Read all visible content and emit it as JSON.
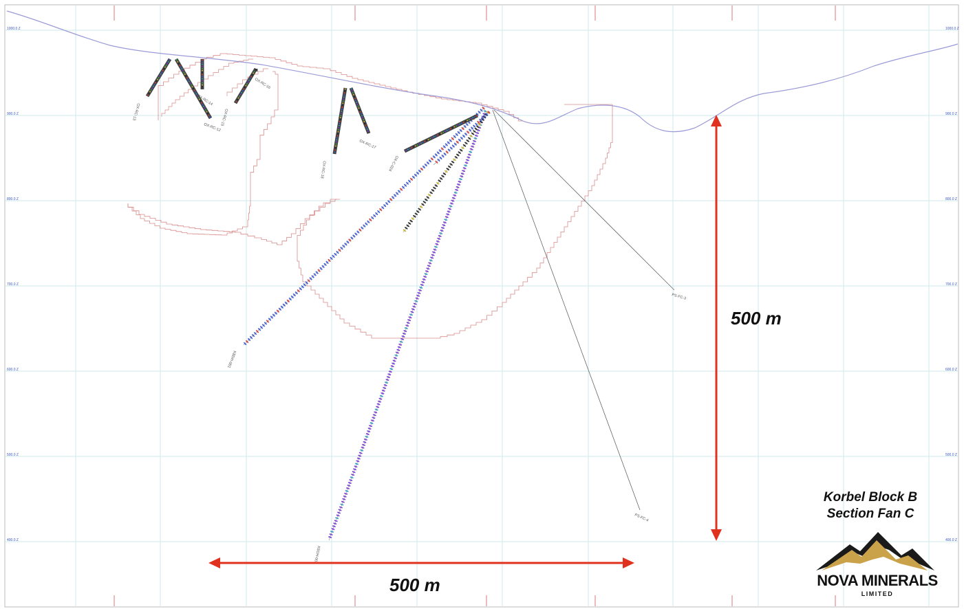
{
  "title": {
    "line1": "Korbel Block B",
    "line2": "Section Fan C"
  },
  "scale_bars": {
    "vertical_label": "500 m",
    "horizontal_label": "500 m",
    "color": "#e0301e"
  },
  "logo": {
    "name": "NOVA MINERALS",
    "subtitle": "LIMITED",
    "gold": "#c9a24a",
    "dark": "#1a1a1a"
  },
  "elevation_labels": [
    "1000.0 Z",
    "900.0 Z",
    "800.0 Z",
    "700.0 Z",
    "600.0 Z",
    "500.0 Z",
    "400.0 Z"
  ],
  "colors": {
    "grid": "#cfe8ec",
    "grid_label": "#3a55c0",
    "topography": "#9a9ad8",
    "pit_outline": "#d98a8a",
    "trace": "#555555",
    "red_grid_label": "#c02020"
  },
  "drillholes": [
    {
      "id": "OX-RC-13"
    },
    {
      "id": "OX-RC-12"
    },
    {
      "id": "OX-RC-14"
    },
    {
      "id": "OX-RC-15"
    },
    {
      "id": "OX-RC-16"
    },
    {
      "id": "OX-RC-17"
    },
    {
      "id": "OX-RC-18"
    },
    {
      "id": "KBDH-001"
    },
    {
      "id": "KBDH-002"
    },
    {
      "id": "OX-C-024"
    },
    {
      "id": "PS-FC-4"
    },
    {
      "id": "PS-FC-3"
    }
  ]
}
